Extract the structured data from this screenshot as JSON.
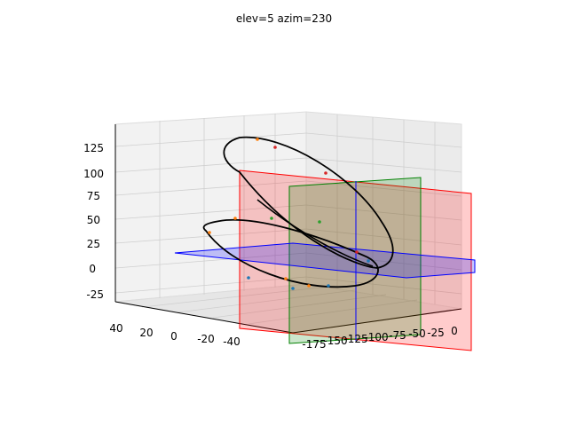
{
  "chart_data": {
    "type": "3d-line",
    "title": "elev=5 azim=230",
    "view": {
      "elev": 5,
      "azim": 230
    },
    "axes": {
      "x": {
        "label": "",
        "ticks": [
          "-175",
          "-150",
          "-125",
          "-100",
          "-75",
          "-50",
          "-25",
          "0"
        ]
      },
      "y": {
        "label": "",
        "ticks": [
          "40",
          "20",
          "0",
          "-20",
          "-40"
        ]
      },
      "z": {
        "label": "",
        "ticks": [
          "-25",
          "0",
          "25",
          "50",
          "75",
          "100",
          "125"
        ]
      }
    },
    "series": [
      {
        "name": "trajectory",
        "color": "#000000",
        "marker_colors": [
          "#ff7f0e",
          "#1f77b4",
          "#2ca02c",
          "#d62728"
        ]
      }
    ],
    "planes": [
      {
        "name": "red plane",
        "color": "#ff0000"
      },
      {
        "name": "green plane",
        "color": "#008000"
      },
      {
        "name": "blue plane",
        "color": "#0000ff"
      }
    ],
    "grid": true
  }
}
